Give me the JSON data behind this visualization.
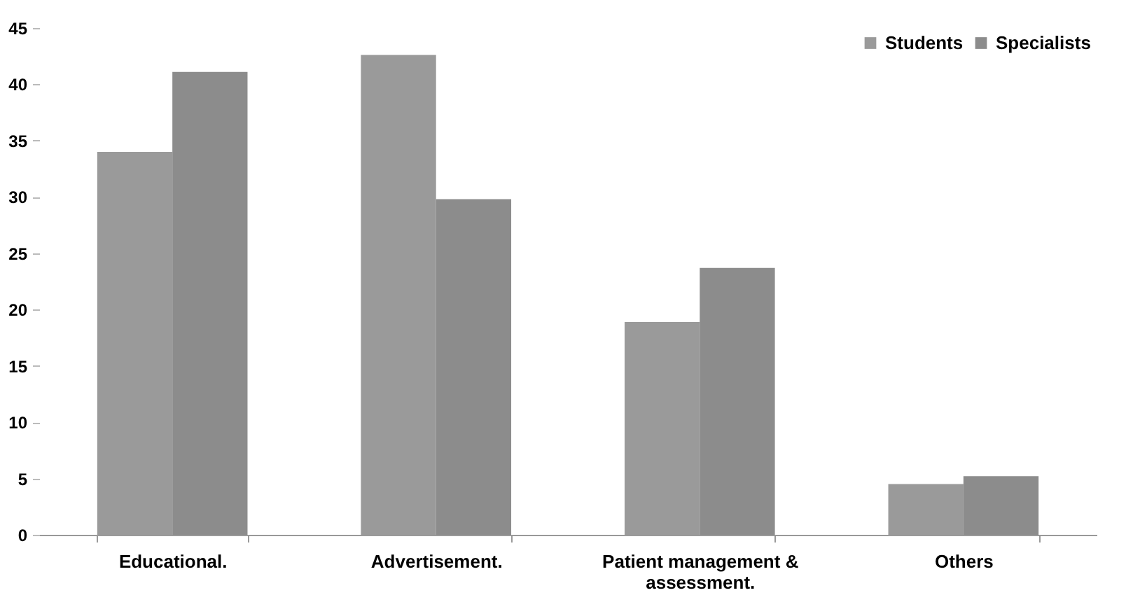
{
  "chart_data": {
    "type": "bar",
    "categories": [
      "Educational.",
      "Advertisement.",
      "Patient management & assessment.",
      "Others"
    ],
    "series": [
      {
        "name": "Students",
        "color": "#9a9a9a",
        "values": [
          34.0,
          42.6,
          18.9,
          4.5
        ]
      },
      {
        "name": "Specialists",
        "color": "#8c8c8c",
        "values": [
          41.1,
          29.8,
          23.7,
          5.2
        ]
      }
    ],
    "ylim": [
      0,
      45
    ],
    "yticks": [
      0,
      5,
      10,
      15,
      20,
      25,
      30,
      35,
      40,
      45
    ],
    "grid": false,
    "legend": "top right"
  }
}
